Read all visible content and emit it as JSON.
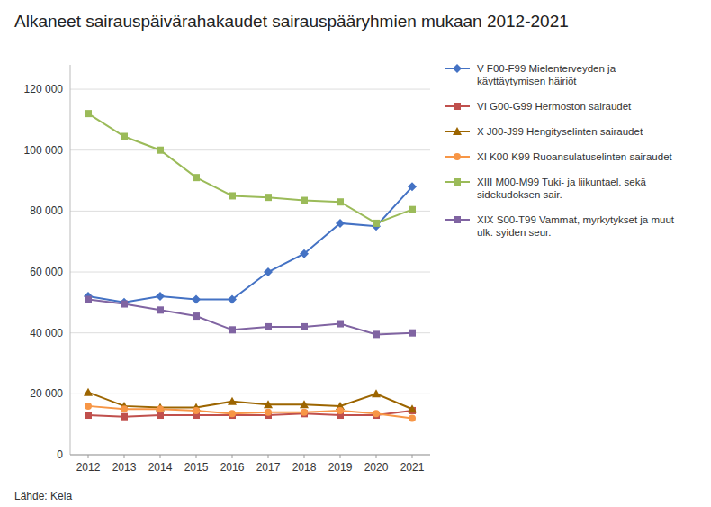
{
  "chart_data": {
    "type": "line",
    "title": "Alkaneet sairauspäivärahakaudet sairauspääryhmien mukaan 2012-2021",
    "source": "Lähde: Kela",
    "x": [
      2012,
      2013,
      2014,
      2015,
      2016,
      2017,
      2018,
      2019,
      2020,
      2021
    ],
    "xlim": [
      2011.5,
      2021.5
    ],
    "xticks": [
      2012,
      2013,
      2014,
      2015,
      2016,
      2017,
      2018,
      2019,
      2020,
      2021
    ],
    "ylim": [
      0,
      128000
    ],
    "yticks": [
      0,
      {
        "value": 20000,
        "label": "20 000"
      },
      {
        "value": 40000,
        "label": "40 000"
      },
      {
        "value": 60000,
        "label": "60 000"
      },
      {
        "value": 80000,
        "label": "80 000"
      },
      {
        "value": 100000,
        "label": "100 000"
      },
      {
        "value": 120000,
        "label": "120 000"
      }
    ],
    "grid": true,
    "legend": "right",
    "series": [
      {
        "name": "V F00-F99 Mielenterveyden ja\nkäyttäytymisen häiriöt",
        "color": "#4472C4",
        "marker": "diamond",
        "values": [
          52000,
          50000,
          52000,
          51000,
          51000,
          60000,
          66000,
          76000,
          75000,
          88000
        ]
      },
      {
        "name": "VI G00-G99 Hermoston sairaudet",
        "color": "#C0504D",
        "marker": "square",
        "values": [
          13000,
          12500,
          13000,
          13000,
          13000,
          13000,
          13500,
          13000,
          13000,
          14500
        ]
      },
      {
        "name": "X J00-J99 Hengityselinten sairaudet",
        "color": "#9C6500",
        "marker": "triangle",
        "values": [
          20500,
          16000,
          15500,
          15500,
          17500,
          16500,
          16500,
          16000,
          20000,
          15000
        ]
      },
      {
        "name": "XI K00-K99 Ruoansulatuselinten sairaudet",
        "color": "#F79646",
        "marker": "circle",
        "values": [
          16000,
          15000,
          15000,
          14500,
          13500,
          14000,
          14000,
          14500,
          13500,
          12000
        ]
      },
      {
        "name": "XIII M00-M99 Tuki- ja liikuntael. sekä\nsidekudoksen sair.",
        "color": "#9BBB59",
        "marker": "square",
        "values": [
          112000,
          104500,
          100000,
          91000,
          85000,
          84500,
          83500,
          83000,
          76000,
          80500
        ]
      },
      {
        "name": "XIX S00-T99 Vammat, myrkytykset ja muut\nulk. syiden seur.",
        "color": "#8064A2",
        "marker": "square",
        "values": [
          51000,
          49500,
          47500,
          45500,
          41000,
          42000,
          42000,
          43000,
          39500,
          40000
        ]
      }
    ]
  }
}
